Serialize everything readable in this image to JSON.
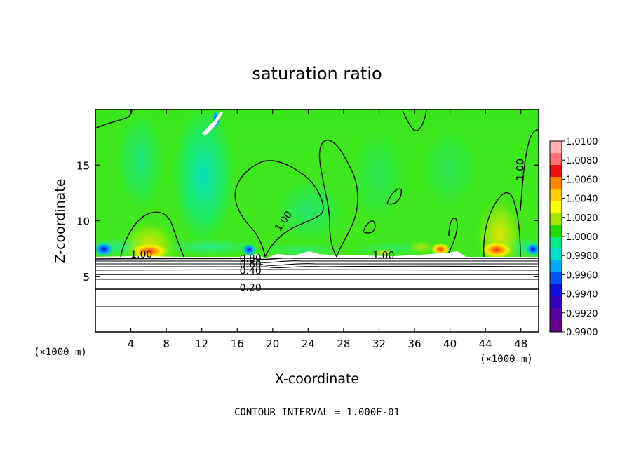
{
  "chart_data": {
    "type": "heatmap",
    "title": "saturation ratio",
    "xlabel": "X-coordinate",
    "ylabel": "Z-coordinate",
    "x_unit_left": "(×1000 m)",
    "x_unit_right": "(×1000 m)",
    "xlim": [
      0,
      50
    ],
    "ylim": [
      0,
      20
    ],
    "xticks": [
      4,
      8,
      12,
      16,
      20,
      24,
      28,
      32,
      36,
      40,
      44,
      48
    ],
    "yticks": [
      5,
      10,
      15
    ],
    "footer": "CONTOUR INTERVAL = 1.000E-01",
    "colorbar": {
      "levels": [
        "1.0100",
        "1.0080",
        "1.0060",
        "1.0040",
        "1.0020",
        "1.0000",
        "0.9980",
        "0.9960",
        "0.9940",
        "0.9920",
        "0.9900"
      ],
      "colors": [
        "#ffb3b3",
        "#ff7070",
        "#ee1010",
        "#ff8800",
        "#ffcc00",
        "#ffff00",
        "#a8e600",
        "#22dd00",
        "#00ee88",
        "#00ddcc",
        "#00aaff",
        "#0055ff",
        "#1010dd",
        "#3300bb",
        "#5500a0",
        "#6a0090"
      ]
    },
    "contour_labels": [
      {
        "text": "1.00",
        "x": 5.2,
        "z": 6.7
      },
      {
        "text": "1.00",
        "x": 21.5,
        "z": 9.8,
        "rot": -55
      },
      {
        "text": "1.00",
        "x": 32.5,
        "z": 6.6
      },
      {
        "text": "1.00",
        "x": 48.3,
        "z": 14.6,
        "rot": -90
      },
      {
        "text": "0.80",
        "x": 17.5,
        "z": 6.3
      },
      {
        "text": "0.60",
        "x": 17.5,
        "z": 5.8
      },
      {
        "text": "0.40",
        "x": 17.5,
        "z": 5.2
      },
      {
        "text": "0.20",
        "x": 17.5,
        "z": 3.7
      }
    ]
  }
}
